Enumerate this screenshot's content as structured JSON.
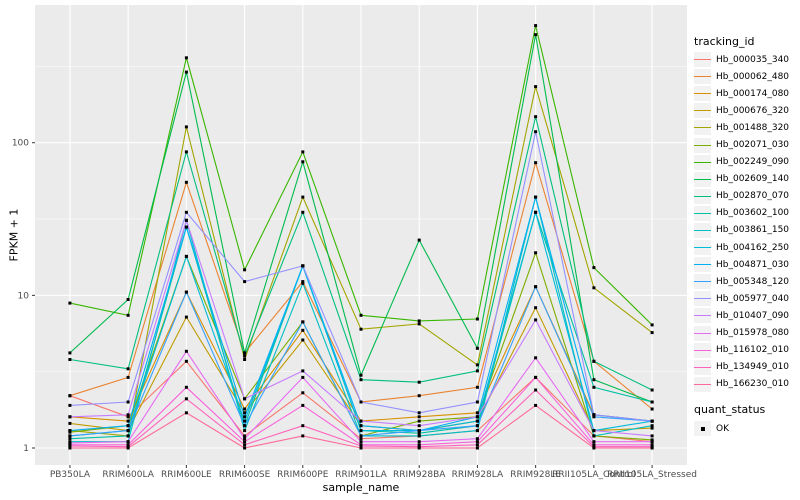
{
  "chart_data": {
    "type": "line",
    "title": "",
    "xlabel": "sample_name",
    "ylabel": "FPKM + 1",
    "y_scale": "log10",
    "y_ticks": [
      1,
      10,
      100
    ],
    "y_minor_ticks": [
      3.162,
      31.62,
      316.2
    ],
    "ylim_log_range": [
      0.88,
      2.9
    ],
    "grid": "on",
    "panel_bg": "#EBEBEB",
    "grid_color": "#FFFFFF",
    "tick_label_color": "#4D4D4D",
    "legend_position": "right",
    "legend_title": "tracking_id",
    "legend2": {
      "title": "quant_status",
      "items": [
        "OK"
      ],
      "point_color": "#000000"
    },
    "categories": [
      "PB350LA",
      "RRIM600LA",
      "RRIM600LE",
      "RRIM600SE",
      "RRIM600PE",
      "RRIM901LA",
      "RRIM928BA",
      "RRIM928LA",
      "RRIM928LE",
      "RRII105LA_Control",
      "RRII105LA_Stressed"
    ],
    "series": [
      {
        "name": "Hb_000035_340",
        "color": "#F8766D",
        "values": [
          2.2,
          1.6,
          3.7,
          1.2,
          2.3,
          1.15,
          1.2,
          1.3,
          2.9,
          1.2,
          1.1
        ]
      },
      {
        "name": "Hb_000062_480",
        "color": "#EA8331",
        "values": [
          2.2,
          2.9,
          55,
          4.2,
          12.3,
          2.0,
          2.2,
          2.5,
          74,
          3.7,
          1.8
        ]
      },
      {
        "name": "Hb_000174_080",
        "color": "#D89000",
        "values": [
          1.6,
          1.5,
          10.5,
          1.8,
          5.9,
          1.5,
          1.6,
          1.7,
          11.4,
          1.65,
          1.5
        ]
      },
      {
        "name": "Hb_000676_320",
        "color": "#C09B00",
        "values": [
          1.45,
          1.3,
          7.2,
          1.7,
          5.1,
          1.4,
          1.3,
          1.5,
          8.3,
          1.3,
          1.35
        ]
      },
      {
        "name": "Hb_001488_320",
        "color": "#A3A500",
        "values": [
          1.3,
          1.2,
          127,
          3.8,
          44,
          6.0,
          6.5,
          3.5,
          233,
          11.2,
          5.7
        ]
      },
      {
        "name": "Hb_002071_030",
        "color": "#7CAE00",
        "values": [
          1.27,
          1.4,
          18,
          2.1,
          6.7,
          1.2,
          1.5,
          1.6,
          19,
          1.2,
          1.13
        ]
      },
      {
        "name": "Hb_002249_090",
        "color": "#39B600",
        "values": [
          8.9,
          7.4,
          360,
          14.7,
          87,
          7.4,
          6.8,
          7.0,
          585,
          15.2,
          6.4
        ]
      },
      {
        "name": "Hb_002609_140",
        "color": "#00BB4E",
        "values": [
          4.2,
          9.4,
          290,
          4.2,
          75,
          3.0,
          23,
          4.5,
          510,
          2.8,
          2.0
        ]
      },
      {
        "name": "Hb_002870_070",
        "color": "#00BF7D",
        "values": [
          3.8,
          3.3,
          87,
          4.0,
          35,
          2.8,
          2.7,
          3.2,
          148,
          3.7,
          2.4
        ]
      },
      {
        "name": "Hb_003602_100",
        "color": "#00C1A3",
        "values": [
          1.15,
          1.2,
          28,
          1.4,
          15.6,
          1.3,
          1.25,
          1.4,
          35,
          2.5,
          2.0
        ]
      },
      {
        "name": "Hb_003861_150",
        "color": "#00BFC4",
        "values": [
          1.1,
          1.1,
          31,
          1.3,
          12,
          1.2,
          1.2,
          1.3,
          44,
          1.2,
          1.4
        ]
      },
      {
        "name": "Hb_004162_250",
        "color": "#00BBDA",
        "values": [
          1.2,
          1.3,
          18,
          1.5,
          15.6,
          1.3,
          1.3,
          1.5,
          35,
          1.3,
          1.5
        ]
      },
      {
        "name": "Hb_004871_030",
        "color": "#00B0F6",
        "values": [
          1.3,
          1.4,
          28,
          1.6,
          15.6,
          1.4,
          1.3,
          1.6,
          44,
          1.65,
          1.5
        ]
      },
      {
        "name": "Hb_005348_120",
        "color": "#35A2FF",
        "values": [
          1.2,
          1.3,
          10.5,
          1.4,
          6.7,
          1.2,
          1.3,
          1.4,
          11.4,
          1.6,
          1.5
        ]
      },
      {
        "name": "Hb_005977_040",
        "color": "#9590FF",
        "values": [
          1.9,
          2.0,
          35,
          12.3,
          15.6,
          2.0,
          1.7,
          2.0,
          118,
          1.65,
          1.5
        ]
      },
      {
        "name": "Hb_010407_090",
        "color": "#C77CFF",
        "values": [
          1.6,
          1.65,
          31,
          2.1,
          3.2,
          1.5,
          1.4,
          1.6,
          6.9,
          1.3,
          1.2
        ]
      },
      {
        "name": "Hb_015978_080",
        "color": "#E76BF3",
        "values": [
          1.08,
          1.1,
          4.3,
          1.15,
          2.9,
          1.1,
          1.1,
          1.15,
          3.9,
          1.1,
          1.1
        ]
      },
      {
        "name": "Hb_116102_010",
        "color": "#FA62DB",
        "values": [
          1.05,
          1.05,
          2.5,
          1.1,
          1.9,
          1.05,
          1.05,
          1.1,
          2.9,
          1.05,
          1.05
        ]
      },
      {
        "name": "Hb_134949_010",
        "color": "#FF62BC",
        "values": [
          1.03,
          1.02,
          2.1,
          1.05,
          1.4,
          1.03,
          1.02,
          1.05,
          2.4,
          1.02,
          1.02
        ]
      },
      {
        "name": "Hb_166230_010",
        "color": "#FF6A98",
        "values": [
          1.0,
          1.0,
          1.7,
          1.0,
          1.2,
          1.0,
          1.0,
          1.0,
          1.9,
          1.0,
          1.0
        ]
      }
    ]
  }
}
